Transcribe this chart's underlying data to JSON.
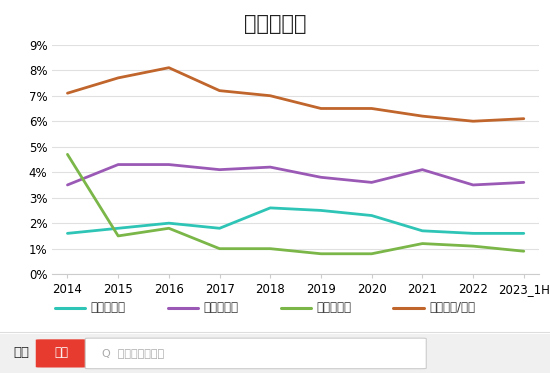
{
  "title": "京东费用率",
  "x_labels": [
    "2014",
    "2015",
    "2016",
    "2017",
    "2018",
    "2019",
    "2020",
    "2021",
    "2022",
    "2023_1H"
  ],
  "x_values": [
    0,
    1,
    2,
    3,
    4,
    5,
    6,
    7,
    8,
    9
  ],
  "series_order": [
    "研发费用率",
    "销售费用率",
    "管理费用率",
    "履约成本/营收"
  ],
  "series": {
    "研发费用率": {
      "values": [
        1.6,
        1.8,
        2.0,
        1.8,
        2.6,
        2.5,
        2.3,
        1.7,
        1.6,
        1.6
      ],
      "color": "#2ec4b6"
    },
    "销售费用率": {
      "values": [
        3.5,
        4.3,
        4.3,
        4.1,
        4.2,
        3.8,
        3.6,
        4.1,
        3.5,
        3.6
      ],
      "color": "#9b59b6"
    },
    "管理费用率": {
      "values": [
        4.7,
        1.5,
        1.8,
        1.0,
        1.0,
        0.8,
        0.8,
        1.2,
        1.1,
        0.9
      ],
      "color": "#7ab648"
    },
    "履约成本/营收": {
      "values": [
        7.1,
        7.7,
        8.1,
        7.2,
        7.0,
        6.5,
        6.5,
        6.2,
        6.0,
        6.1
      ],
      "color": "#c0652b"
    }
  },
  "ylim": [
    0,
    9
  ],
  "yticks": [
    0,
    1,
    2,
    3,
    4,
    5,
    6,
    7,
    8,
    9
  ],
  "ytick_labels": [
    "0%",
    "1%",
    "2%",
    "3%",
    "4%",
    "5%",
    "6%",
    "7%",
    "8%",
    "9%"
  ],
  "bg_color": "#ffffff",
  "plot_bg_color": "#ffffff",
  "grid_color": "#e0e0e0",
  "legend_labels": [
    "研发费用率",
    "销售费用率",
    "管理费用率",
    "履约成本/营收"
  ],
  "legend_colors": [
    "#2ec4b6",
    "#9b59b6",
    "#7ab648",
    "#c0652b"
  ],
  "footer_bg_color": "#f0f0f0",
  "logo_text1": "市值",
  "logo_text2": "风云",
  "search_text": "Q  买股之前搜一搜"
}
